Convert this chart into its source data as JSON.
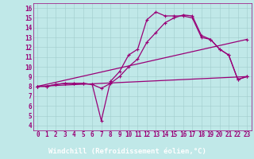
{
  "xlabel": "Windchill (Refroidissement éolien,°C)",
  "bg_color": "#c0e8e8",
  "grid_color": "#a0cccc",
  "line_color": "#990077",
  "xlabel_bg": "#330055",
  "xlabel_fg": "#ffffff",
  "xlim": [
    -0.5,
    23.5
  ],
  "ylim": [
    3.5,
    16.5
  ],
  "xticks": [
    0,
    1,
    2,
    3,
    4,
    5,
    6,
    7,
    8,
    9,
    10,
    11,
    12,
    13,
    14,
    15,
    16,
    17,
    18,
    19,
    20,
    21,
    22,
    23
  ],
  "yticks": [
    4,
    5,
    6,
    7,
    8,
    9,
    10,
    11,
    12,
    13,
    14,
    15,
    16
  ],
  "line1_x": [
    0,
    1,
    2,
    3,
    4,
    5,
    6,
    7,
    8,
    9,
    10,
    11,
    12,
    13,
    14,
    15,
    16,
    17,
    18,
    19,
    20,
    21,
    22,
    23
  ],
  "line1_y": [
    8,
    8,
    8.2,
    8.3,
    8.3,
    8.3,
    8.2,
    4.5,
    8.5,
    9.5,
    11.2,
    11.8,
    14.8,
    15.6,
    15.2,
    15.2,
    15.2,
    15.0,
    13.0,
    12.8,
    11.8,
    11.2,
    8.7,
    9.0
  ],
  "line2_x": [
    0,
    1,
    2,
    3,
    4,
    5,
    6,
    7,
    8,
    9,
    10,
    11,
    12,
    13,
    14,
    15,
    16,
    17,
    18,
    19,
    20,
    21,
    22,
    23
  ],
  "line2_y": [
    8,
    8,
    8.2,
    8.3,
    8.3,
    8.3,
    8.2,
    7.8,
    8.3,
    9.0,
    10.0,
    10.8,
    12.5,
    13.5,
    14.5,
    15.0,
    15.3,
    15.2,
    13.2,
    12.8,
    11.8,
    11.2,
    8.7,
    9.0
  ],
  "line3_x": [
    0,
    23
  ],
  "line3_y": [
    8,
    9.0
  ],
  "line4_x": [
    0,
    23
  ],
  "line4_y": [
    8,
    12.8
  ],
  "linewidth": 0.9,
  "tick_fontsize": 5.5,
  "xlabel_fontsize": 6.5
}
